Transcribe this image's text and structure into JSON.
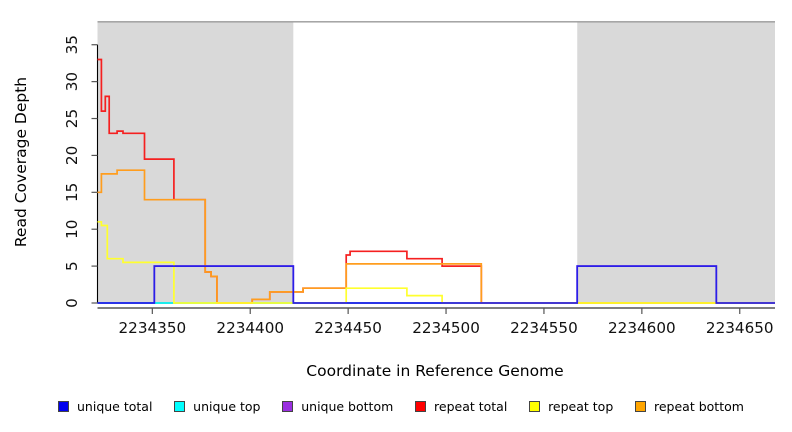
{
  "chart_data": {
    "type": "line",
    "subtype": "step-coverage-plot",
    "title": "",
    "xlabel": "Coordinate in Reference Genome",
    "ylabel": "Read Coverage Depth",
    "xlim": [
      2234322,
      2234668
    ],
    "ylim": [
      0,
      38
    ],
    "x_ticks": [
      2234350,
      2234400,
      2234450,
      2234500,
      2234550,
      2234600,
      2234650
    ],
    "y_ticks": [
      0,
      5,
      10,
      15,
      20,
      25,
      30,
      35
    ],
    "grid": "off",
    "legend_position": "bottom",
    "shade_color": "#d9d9d9",
    "shade_edge_color": "#999999",
    "shaded_regions": [
      {
        "from": 2234322,
        "to": 2234422
      },
      {
        "from": 2234567,
        "to": 2234668
      }
    ],
    "draw_order": [
      "unique bottom",
      "unique top",
      "repeat total",
      "repeat bottom",
      "repeat top",
      "unique total"
    ],
    "series": [
      {
        "name": "unique total",
        "color": "#2a1fe8",
        "points": [
          [
            2234322,
            0
          ],
          [
            2234351,
            5
          ],
          [
            2234422,
            0
          ],
          [
            2234567,
            5
          ],
          [
            2234638,
            0
          ]
        ]
      },
      {
        "name": "unique top",
        "color": "#00eeee",
        "points": [
          [
            2234322,
            0
          ]
        ]
      },
      {
        "name": "unique bottom",
        "color": "#9a2fe0",
        "points": [
          [
            2234322,
            0
          ],
          [
            2234351,
            5
          ],
          [
            2234422,
            0
          ],
          [
            2234567,
            5
          ],
          [
            2234638,
            0
          ]
        ]
      },
      {
        "name": "repeat total",
        "color": "#f52020",
        "points": [
          [
            2234322,
            33
          ],
          [
            2234324,
            26
          ],
          [
            2234326,
            28
          ],
          [
            2234328,
            23
          ],
          [
            2234332,
            23.3
          ],
          [
            2234335,
            23
          ],
          [
            2234346,
            19.5
          ],
          [
            2234361,
            14
          ],
          [
            2234377,
            4.2
          ],
          [
            2234380,
            3.6
          ],
          [
            2234383,
            0
          ],
          [
            2234401,
            0.5
          ],
          [
            2234410,
            1.5
          ],
          [
            2234427,
            2
          ],
          [
            2234449,
            6.5
          ],
          [
            2234451,
            7
          ],
          [
            2234480,
            6
          ],
          [
            2234498,
            5
          ],
          [
            2234518,
            0
          ]
        ]
      },
      {
        "name": "repeat top",
        "color": "#ffff2e",
        "points": [
          [
            2234322,
            11
          ],
          [
            2234324,
            10.5
          ],
          [
            2234327,
            6
          ],
          [
            2234335,
            5.5
          ],
          [
            2234361,
            0
          ],
          [
            2234449,
            2
          ],
          [
            2234480,
            1
          ],
          [
            2234498,
            0
          ]
        ]
      },
      {
        "name": "repeat bottom",
        "color": "#ff9d1e",
        "points": [
          [
            2234322,
            15
          ],
          [
            2234324,
            17.5
          ],
          [
            2234332,
            18
          ],
          [
            2234346,
            14
          ],
          [
            2234377,
            4.2
          ],
          [
            2234380,
            3.6
          ],
          [
            2234383,
            0
          ],
          [
            2234401,
            0.5
          ],
          [
            2234410,
            1.5
          ],
          [
            2234427,
            2
          ],
          [
            2234449,
            5.3
          ],
          [
            2234518,
            0
          ]
        ]
      }
    ],
    "legend": [
      {
        "label": "unique total",
        "color": "#0000ee"
      },
      {
        "label": "unique top",
        "color": "#00ffff"
      },
      {
        "label": "unique bottom",
        "color": "#9a2fe0"
      },
      {
        "label": "repeat total",
        "color": "#ff0000"
      },
      {
        "label": "repeat top",
        "color": "#ffff00"
      },
      {
        "label": "repeat bottom",
        "color": "#ffa500"
      }
    ]
  },
  "labels": {
    "x_axis_title": "Coordinate in Reference Genome",
    "y_axis_title": "Read Coverage Depth"
  }
}
